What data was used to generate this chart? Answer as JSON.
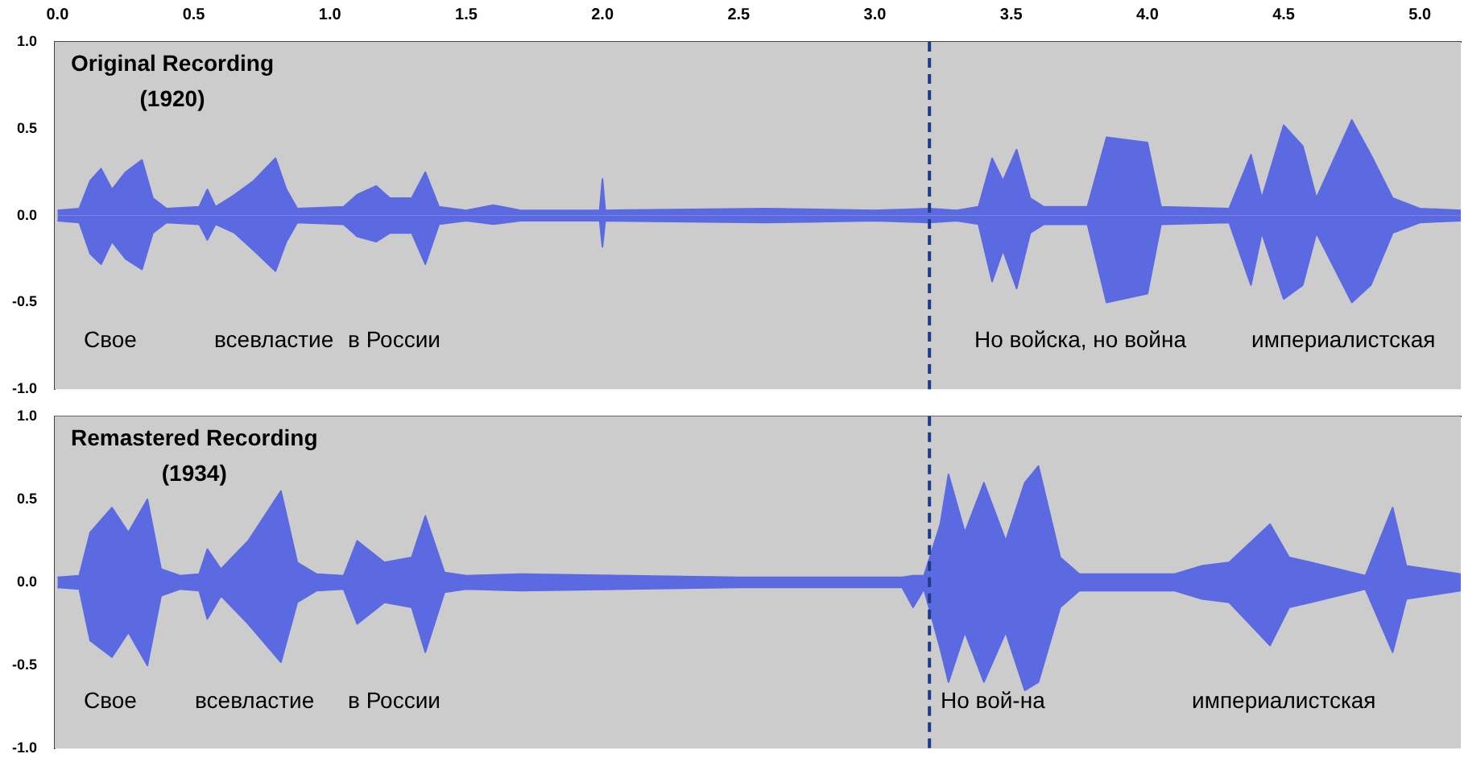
{
  "chart_data": [
    {
      "type": "area",
      "title": "Original Recording\n(1920)",
      "xlim": [
        -0.01,
        5.15
      ],
      "xticks": [
        {
          "value": 0,
          "label": "0.0"
        },
        {
          "value": 0.5,
          "label": "0.5"
        },
        {
          "value": 1,
          "label": "1.0"
        },
        {
          "value": 1.5,
          "label": "1.5"
        },
        {
          "value": 2,
          "label": "2.0"
        },
        {
          "value": 2.5,
          "label": "2.5"
        },
        {
          "value": 3,
          "label": "3.0"
        },
        {
          "value": 3.5,
          "label": "3.5"
        },
        {
          "value": 4,
          "label": "4.0"
        },
        {
          "value": 4.5,
          "label": "4.5"
        },
        {
          "value": 5,
          "label": "5.0"
        }
      ],
      "ylim": [
        -1,
        1
      ],
      "yticks": [
        {
          "value": -1,
          "label": "-1.0"
        },
        {
          "value": -0.5,
          "label": "-0.5"
        },
        {
          "value": 0,
          "label": "0.0"
        },
        {
          "value": 0.5,
          "label": "0.5"
        },
        {
          "value": 1,
          "label": "1.0"
        }
      ],
      "grid": false,
      "legend": false,
      "series": [
        {
          "color": "#5b6ae0",
          "x": [
            0,
            0.08,
            0.12,
            0.16,
            0.2,
            0.25,
            0.31,
            0.35,
            0.4,
            0.52,
            0.55,
            0.58,
            0.65,
            0.72,
            0.8,
            0.84,
            0.88,
            1.05,
            1.1,
            1.17,
            1.22,
            1.3,
            1.35,
            1.4,
            1.5,
            1.6,
            1.7,
            1.99,
            2.0,
            2.01,
            2.6,
            3.0,
            3.2,
            3.3,
            3.38,
            3.43,
            3.47,
            3.52,
            3.57,
            3.62,
            3.78,
            3.85,
            4.0,
            4.05,
            4.3,
            4.38,
            4.42,
            4.5,
            4.57,
            4.62,
            4.75,
            4.82,
            4.9,
            5.0,
            5.15
          ],
          "values": [
            0.03,
            0.04,
            0.2,
            0.27,
            0.15,
            0.25,
            0.32,
            0.1,
            0.04,
            0.05,
            0.15,
            0.05,
            0.12,
            0.2,
            0.33,
            0.15,
            0.04,
            0.05,
            0.12,
            0.17,
            0.1,
            0.1,
            0.25,
            0.05,
            0.03,
            0.06,
            0.03,
            0.03,
            0.21,
            0.03,
            0.04,
            0.03,
            0.04,
            0.03,
            0.05,
            0.33,
            0.2,
            0.38,
            0.1,
            0.05,
            0.05,
            0.45,
            0.42,
            0.05,
            0.04,
            0.35,
            0.1,
            0.52,
            0.4,
            0.1,
            0.55,
            0.35,
            0.1,
            0.04,
            0.03
          ]
        },
        {
          "color": "#5b6ae0",
          "x": [
            0,
            0.08,
            0.12,
            0.16,
            0.2,
            0.25,
            0.31,
            0.35,
            0.4,
            0.52,
            0.55,
            0.58,
            0.65,
            0.72,
            0.8,
            0.84,
            0.88,
            1.05,
            1.1,
            1.17,
            1.22,
            1.3,
            1.35,
            1.4,
            1.5,
            1.6,
            1.7,
            1.99,
            2.0,
            2.01,
            2.6,
            3.0,
            3.2,
            3.3,
            3.38,
            3.43,
            3.47,
            3.52,
            3.57,
            3.62,
            3.78,
            3.85,
            4.0,
            4.05,
            4.3,
            4.38,
            4.42,
            4.5,
            4.57,
            4.62,
            4.75,
            4.82,
            4.9,
            5.0,
            5.15
          ],
          "values": [
            -0.03,
            -0.04,
            -0.22,
            -0.28,
            -0.15,
            -0.25,
            -0.31,
            -0.1,
            -0.04,
            -0.05,
            -0.14,
            -0.05,
            -0.1,
            -0.2,
            -0.32,
            -0.15,
            -0.04,
            -0.05,
            -0.12,
            -0.15,
            -0.1,
            -0.1,
            -0.28,
            -0.05,
            -0.03,
            -0.05,
            -0.03,
            -0.03,
            -0.18,
            -0.03,
            -0.04,
            -0.03,
            -0.04,
            -0.03,
            -0.05,
            -0.38,
            -0.2,
            -0.42,
            -0.1,
            -0.05,
            -0.05,
            -0.5,
            -0.45,
            -0.05,
            -0.04,
            -0.4,
            -0.1,
            -0.48,
            -0.4,
            -0.1,
            -0.5,
            -0.4,
            -0.1,
            -0.04,
            -0.03
          ]
        }
      ],
      "ref_lines": [
        {
          "axis": "x",
          "value": 3.2,
          "color": "#1f3a8a",
          "line_style": "dashed"
        }
      ],
      "annotations": [
        "Свое",
        "всевластие",
        "в России",
        "Но войска, но война",
        "империалистская"
      ]
    },
    {
      "type": "area",
      "title": "Remastered Recording\n(1934)",
      "xlim": [
        -0.01,
        5.15
      ],
      "tick_labels": "y",
      "ylim": [
        -1,
        1
      ],
      "yticks": [
        {
          "value": -1,
          "label": "-1.0"
        },
        {
          "value": -0.5,
          "label": "-0.5"
        },
        {
          "value": 0,
          "label": "0.0"
        },
        {
          "value": 0.5,
          "label": "0.5"
        },
        {
          "value": 1,
          "label": "1.0"
        }
      ],
      "grid": false,
      "legend": false,
      "series": [
        {
          "color": "#5b6ae0",
          "x": [
            0,
            0.08,
            0.12,
            0.2,
            0.26,
            0.33,
            0.38,
            0.45,
            0.52,
            0.55,
            0.6,
            0.7,
            0.82,
            0.88,
            0.95,
            1.05,
            1.1,
            1.2,
            1.3,
            1.35,
            1.42,
            1.5,
            1.7,
            2.5,
            3.1,
            3.14,
            3.18,
            3.24,
            3.27,
            3.33,
            3.4,
            3.48,
            3.55,
            3.6,
            3.68,
            3.75,
            4.1,
            4.2,
            4.3,
            4.45,
            4.52,
            4.6,
            4.8,
            4.9,
            4.95,
            5.15
          ],
          "values": [
            0.03,
            0.04,
            0.3,
            0.45,
            0.3,
            0.5,
            0.08,
            0.04,
            0.05,
            0.2,
            0.08,
            0.25,
            0.55,
            0.12,
            0.05,
            0.04,
            0.25,
            0.12,
            0.15,
            0.4,
            0.06,
            0.04,
            0.05,
            0.03,
            0.03,
            0.04,
            0.04,
            0.35,
            0.65,
            0.3,
            0.6,
            0.25,
            0.6,
            0.7,
            0.15,
            0.05,
            0.05,
            0.1,
            0.12,
            0.35,
            0.15,
            0.12,
            0.04,
            0.45,
            0.1,
            0.05
          ]
        },
        {
          "color": "#5b6ae0",
          "x": [
            0,
            0.08,
            0.12,
            0.2,
            0.26,
            0.33,
            0.38,
            0.45,
            0.52,
            0.55,
            0.6,
            0.7,
            0.82,
            0.88,
            0.95,
            1.05,
            1.1,
            1.2,
            1.3,
            1.35,
            1.42,
            1.5,
            1.7,
            2.5,
            3.1,
            3.14,
            3.18,
            3.24,
            3.27,
            3.33,
            3.4,
            3.48,
            3.55,
            3.6,
            3.68,
            3.75,
            4.1,
            4.2,
            4.3,
            4.45,
            4.52,
            4.6,
            4.8,
            4.9,
            4.95,
            5.15
          ],
          "values": [
            -0.03,
            -0.04,
            -0.35,
            -0.45,
            -0.3,
            -0.5,
            -0.08,
            -0.04,
            -0.05,
            -0.22,
            -0.08,
            -0.25,
            -0.48,
            -0.12,
            -0.05,
            -0.04,
            -0.25,
            -0.12,
            -0.15,
            -0.42,
            -0.06,
            -0.04,
            -0.05,
            -0.03,
            -0.03,
            -0.15,
            -0.04,
            -0.4,
            -0.6,
            -0.3,
            -0.6,
            -0.3,
            -0.65,
            -0.6,
            -0.15,
            -0.05,
            -0.05,
            -0.1,
            -0.12,
            -0.38,
            -0.15,
            -0.12,
            -0.04,
            -0.42,
            -0.1,
            -0.05
          ]
        }
      ],
      "ref_lines": [
        {
          "axis": "x",
          "value": 3.2,
          "color": "#1f3a8a",
          "line_style": "dashed"
        }
      ],
      "annotations": [
        "Свое",
        "всевластие",
        "в России",
        "Но вой-на",
        "империалистская"
      ]
    }
  ]
}
